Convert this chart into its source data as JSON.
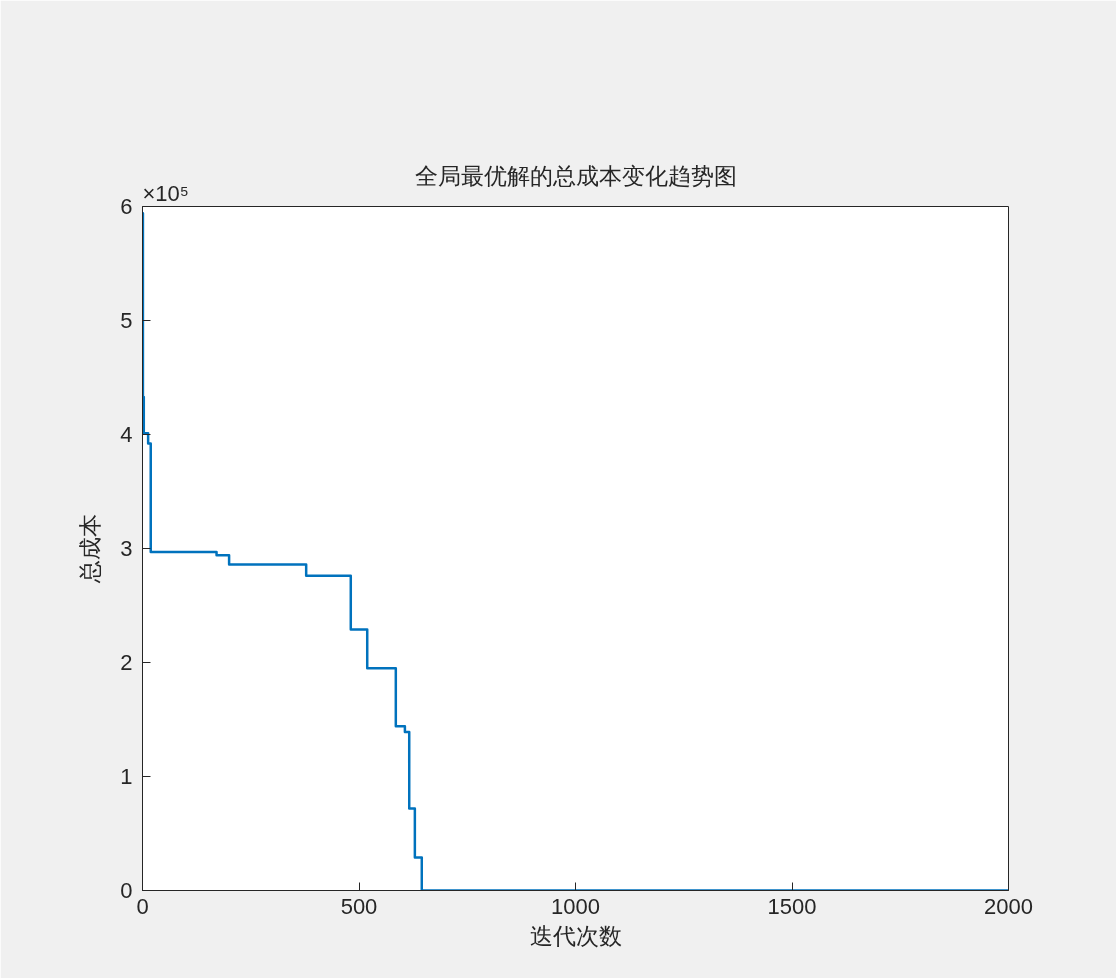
{
  "chart_data": {
    "type": "step",
    "title": "全局最优解的总成本变化趋势图",
    "xlabel": "迭代次数",
    "ylabel": "总成本",
    "annotations": [
      "×10⁵"
    ],
    "x": [
      0,
      1,
      3,
      13,
      19,
      171,
      200,
      378,
      481,
      519,
      585,
      606,
      616,
      629,
      645,
      2000
    ],
    "series": [
      {
        "color": "#0072bd",
        "values": [
          5.94,
          4.33,
          4.01,
          3.92,
          2.97,
          2.94,
          2.86,
          2.76,
          2.29,
          1.95,
          1.44,
          1.39,
          0.72,
          0.29,
          0,
          0
        ]
      }
    ],
    "xlim": [
      0,
      2000
    ],
    "xticks": [
      0,
      500,
      1000,
      1500,
      2000
    ],
    "ylim": [
      0,
      6
    ],
    "yticks": [
      0,
      1,
      2,
      3,
      4,
      5,
      6
    ],
    "marker": "none",
    "line_style": "solid"
  }
}
